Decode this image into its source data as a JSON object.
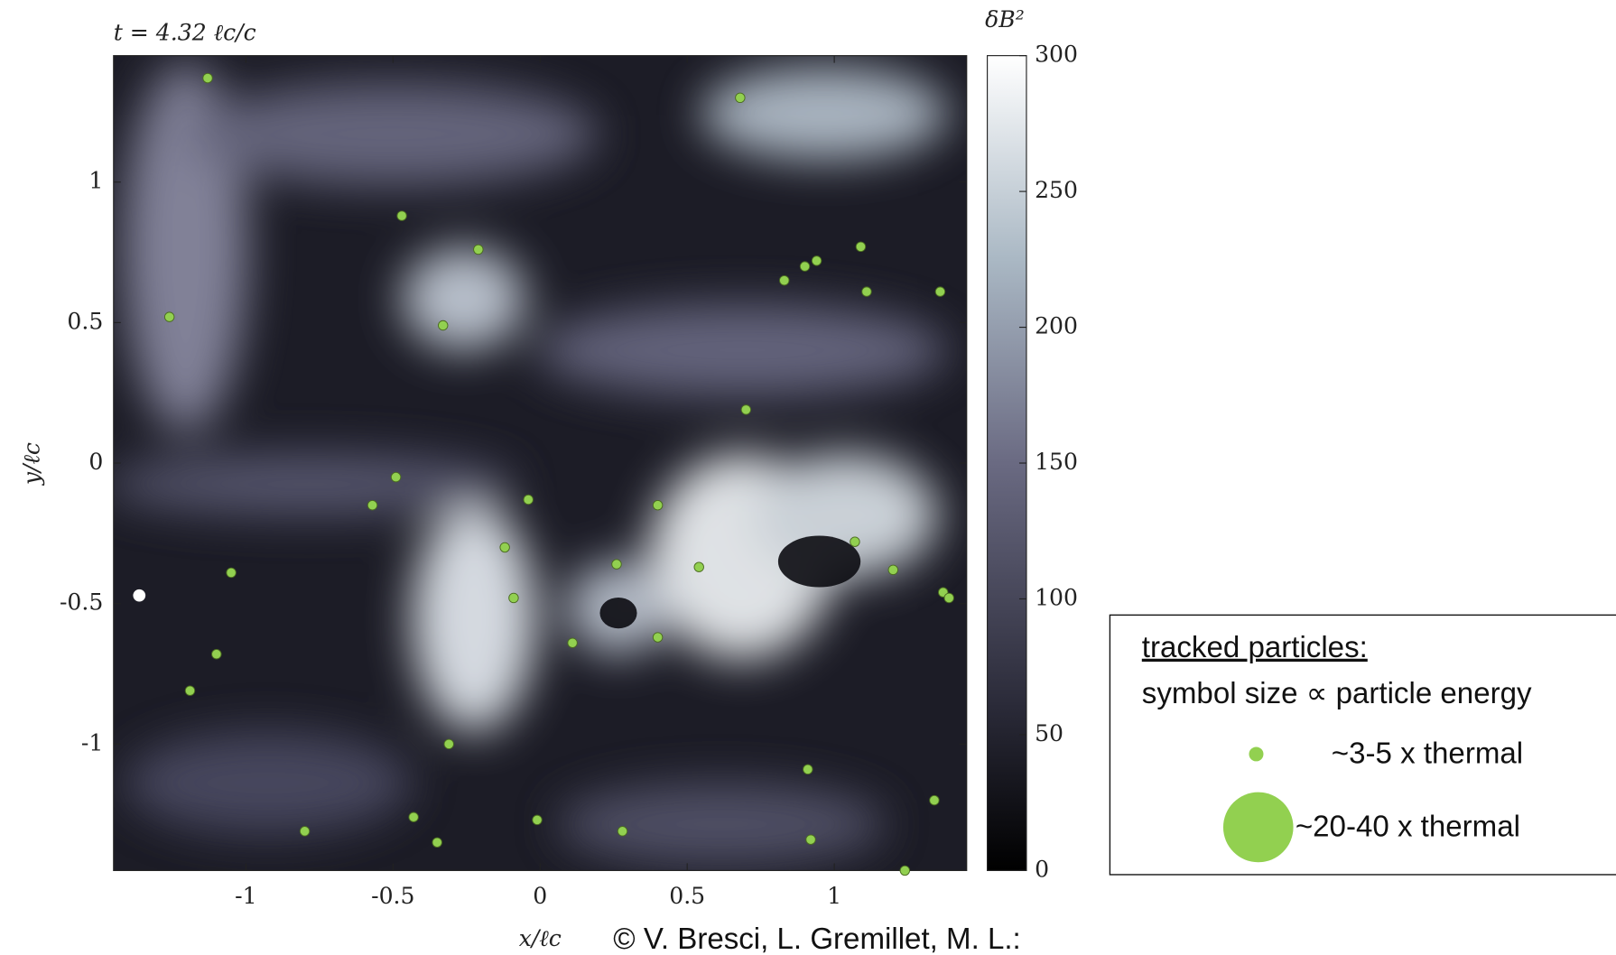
{
  "chart_data": {
    "type": "scatter",
    "title": "t = 4.32 ℓc/c",
    "x_label": "x/ℓc",
    "y_label": "y/ℓc",
    "xlim": [
      -1.45,
      1.45
    ],
    "ylim": [
      -1.45,
      1.45
    ],
    "xticks": [
      -1,
      -0.5,
      0,
      0.5,
      1
    ],
    "yticks": [
      -1,
      -0.5,
      0,
      0.5,
      1
    ],
    "series": [
      {
        "name": "~3-5 x thermal",
        "color": "#92d050",
        "x": [
          -1.13,
          0.68,
          -0.47,
          -0.21,
          -1.26,
          -0.33,
          0.83,
          0.9,
          0.94,
          1.09,
          1.11,
          1.36,
          0.7,
          -0.49,
          -0.57,
          -0.04,
          0.4,
          -0.12,
          0.26,
          0.54,
          1.07,
          1.2,
          1.37,
          1.39,
          -1.05,
          -0.09,
          0.11,
          0.4,
          -1.1,
          -1.19,
          -0.31,
          0.91,
          1.34,
          -0.43,
          -0.8,
          -0.01,
          0.28,
          -0.35,
          0.92,
          1.24
        ],
        "values": [
          1.37,
          1.3,
          0.88,
          0.76,
          0.52,
          0.49,
          0.65,
          0.7,
          0.72,
          0.77,
          0.61,
          0.61,
          0.19,
          -0.05,
          -0.15,
          -0.13,
          -0.15,
          -0.3,
          -0.36,
          -0.37,
          -0.28,
          -0.38,
          -0.46,
          -0.48,
          -0.39,
          -0.48,
          -0.64,
          -0.62,
          -0.68,
          -0.81,
          -1.0,
          -1.09,
          -1.2,
          -1.26,
          -1.31,
          -1.27,
          -1.31,
          -1.35,
          -1.34,
          -1.45
        ]
      }
    ],
    "colorbar": {
      "label": "δB²",
      "clim": [
        0,
        300
      ],
      "ticks": [
        0,
        50,
        100,
        150,
        200,
        250,
        300
      ]
    },
    "legend": {
      "title": "tracked particles:",
      "subtitle": "symbol size ∝ particle energy",
      "large_label": "~20-40 x thermal"
    },
    "credit": "© V. Bresci, L. Gremillet, M. L.:"
  }
}
